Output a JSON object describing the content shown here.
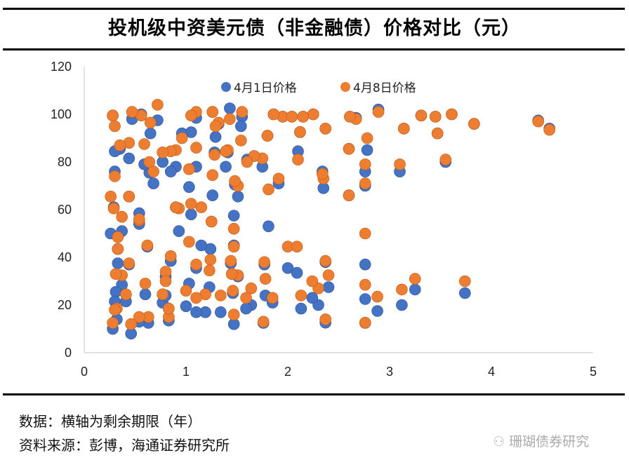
{
  "title": "投机级中资美元债（非金融债）价格对比（元）",
  "footer": {
    "note": "数据：横轴为剩余期限（年）",
    "source": "资料来源：彭博，海通证券研究所"
  },
  "watermark": "珊瑚债券研究",
  "chart_data": {
    "type": "scatter",
    "title": "投机级中资美元债（非金融债）价格对比（元）",
    "xlabel": "",
    "ylabel": "",
    "xlim": [
      0,
      5
    ],
    "ylim": [
      0,
      120
    ],
    "xticks": [
      "0",
      "1",
      "2",
      "3",
      "4",
      "5"
    ],
    "yticks": [
      "0",
      "20",
      "40",
      "60",
      "80",
      "100",
      "120"
    ],
    "grid": false,
    "legend": "top-center",
    "x": [
      4.46,
      4.57,
      3.83,
      3.61,
      3.47,
      3.45,
      3.31,
      3.14,
      2.89,
      3.55,
      3.1,
      3.74,
      3.25,
      3.12,
      2.88,
      2.76,
      2.76,
      2.78,
      2.76,
      2.76,
      2.76,
      2.67,
      2.61,
      2.6,
      2.6,
      2.4,
      2.35,
      2.37,
      2.25,
      2.15,
      2.34,
      2.12,
      2.1,
      2.37,
      2.37,
      2.13,
      2.0,
      2.09,
      2.3,
      2.24,
      1.95,
      1.86,
      2.04,
      1.91,
      1.85,
      1.81,
      1.8,
      1.75,
      1.77,
      1.76,
      1.78,
      1.67,
      1.6,
      1.64,
      1.55,
      1.54,
      1.51,
      1.51,
      1.59,
      1.47,
      1.48,
      1.47,
      1.46,
      1.47,
      1.43,
      1.41,
      1.39,
      1.44,
      1.45,
      1.34,
      1.32,
      1.29,
      1.26,
      1.28,
      1.26,
      1.24,
      1.23,
      1.25,
      1.19,
      1.15,
      1.1,
      1.1,
      1.1,
      1.1,
      1.05,
      1.05,
      1.03,
      1.03,
      1.0,
      0.96,
      0.93,
      0.9,
      0.9,
      0.85,
      0.85,
      0.83,
      0.83,
      0.77,
      0.8,
      0.8,
      0.77,
      0.72,
      0.68,
      0.65,
      0.64,
      0.62,
      0.63,
      0.6,
      0.59,
      0.56,
      0.54,
      0.54,
      0.54,
      0.47,
      0.44,
      0.44,
      0.44,
      0.46,
      0.41,
      0.37,
      0.35,
      0.37,
      0.33,
      0.33,
      0.32,
      0.31,
      0.3,
      0.3,
      0.28,
      0.28,
      0.26,
      0.3,
      0.29
    ],
    "series": [
      {
        "name": "4月1日价格",
        "color": "#4472C4",
        "y": [
          97.4,
          94,
          96,
          100,
          92,
          99,
          99.5,
          94,
          102,
          80,
          76,
          25,
          26.5,
          20,
          17.5,
          70,
          76,
          85,
          37,
          22.5,
          12.5,
          98.5,
          99,
          85.5,
          66,
          27.5,
          69,
          94,
          100,
          99,
          76,
          92.5,
          84.5,
          38,
          12.6,
          18.5,
          35.5,
          33.5,
          20,
          23,
          99,
          100,
          99,
          71,
          21,
          53,
          91,
          78,
          37,
          12.5,
          24,
          82.5,
          81,
          20,
          99,
          95,
          65.5,
          32,
          18.5,
          57.5,
          70.5,
          12,
          25,
          45,
          102.5,
          84,
          78,
          37.5,
          33,
          17,
          96,
          90.5,
          66,
          84,
          101,
          43.5,
          27.5,
          55,
          17,
          45,
          98.5,
          78,
          17,
          35.5,
          92.5,
          58,
          69.5,
          29,
          19.5,
          92,
          51,
          78,
          61,
          76,
          38.5,
          13.5,
          18.5,
          21,
          32,
          24,
          80,
          97.5,
          71,
          92,
          75.5,
          44.5,
          12.5,
          24.5,
          79,
          100,
          54,
          58.5,
          13,
          98,
          81.5,
          65.5,
          37,
          8,
          21.5,
          28.5,
          85.5,
          51,
          37.5,
          43.5,
          14,
          25.5,
          84.5,
          76,
          99.5,
          10,
          50,
          21.5,
          61
        ]
      },
      {
        "name": "4月8日价格",
        "color": "#ED7D31",
        "y": [
          97,
          93.5,
          96,
          100,
          92,
          99,
          99.5,
          94,
          101,
          81,
          79,
          30,
          31,
          26.5,
          23.5,
          71,
          79,
          90,
          50,
          28.5,
          12.6,
          98,
          99,
          85.5,
          66,
          32.5,
          73,
          94,
          100,
          99,
          75,
          92.6,
          81,
          38.5,
          14,
          24,
          44.5,
          44.5,
          27,
          30,
          99,
          100,
          99,
          73,
          23,
          68.5,
          91,
          81.5,
          38,
          13,
          31,
          82.5,
          80,
          27,
          101,
          89,
          70,
          32.5,
          23,
          52,
          72,
          16,
          26,
          44.5,
          98,
          85,
          84.5,
          38.5,
          33,
          24,
          96.5,
          95,
          74.5,
          83,
          101,
          39,
          34.5,
          55,
          24.5,
          61,
          101,
          86,
          23,
          37,
          99.5,
          62.5,
          77,
          46.5,
          26,
          90,
          60.5,
          85,
          61,
          84.5,
          40.5,
          15,
          18.5,
          24.5,
          34,
          30,
          84,
          104,
          76,
          96.5,
          80,
          45,
          15,
          29,
          87.5,
          99.5,
          55.5,
          56,
          15,
          101,
          88,
          65.5,
          37.5,
          12,
          24.5,
          32.5,
          87,
          57,
          43.5,
          48.5,
          18.5,
          33,
          95,
          74,
          99.5,
          12.5,
          65.5,
          18,
          60.5
        ]
      }
    ]
  }
}
